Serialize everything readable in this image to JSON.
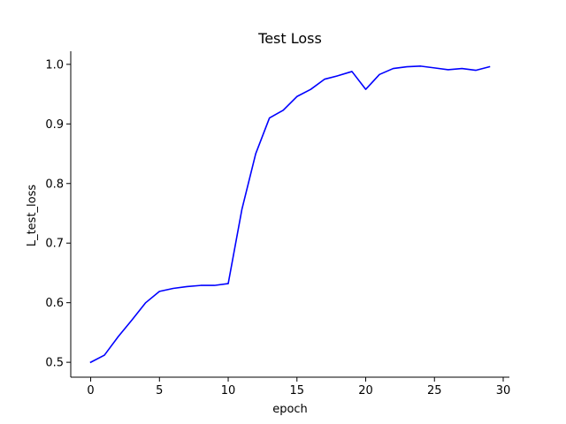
{
  "chart_data": {
    "type": "line",
    "title": "Test Loss",
    "xlabel": "epoch",
    "ylabel": "L_test_loss",
    "xlim": [
      -1.45,
      30.45
    ],
    "ylim": [
      0.475,
      1.022
    ],
    "xticks": [
      0,
      5,
      10,
      15,
      20,
      25,
      30
    ],
    "xtick_labels": [
      "0",
      "5",
      "10",
      "15",
      "20",
      "25",
      "30"
    ],
    "yticks": [
      0.5,
      0.6,
      0.7,
      0.8,
      0.9,
      1.0
    ],
    "ytick_labels": [
      "0.5",
      "0.6",
      "0.7",
      "0.8",
      "0.9",
      "1.0"
    ],
    "grid": false,
    "series": [
      {
        "name": "L_test_loss",
        "color": "#0000ff",
        "x": [
          0,
          1,
          2,
          3,
          4,
          5,
          6,
          7,
          8,
          9,
          10,
          11,
          12,
          13,
          14,
          15,
          16,
          17,
          18,
          19,
          20,
          21,
          22,
          23,
          24,
          25,
          26,
          27,
          28,
          29
        ],
        "y": [
          0.5,
          0.512,
          0.543,
          0.571,
          0.6,
          0.619,
          0.624,
          0.627,
          0.629,
          0.629,
          0.632,
          0.757,
          0.85,
          0.91,
          0.923,
          0.946,
          0.958,
          0.975,
          0.981,
          0.988,
          0.958,
          0.983,
          0.993,
          0.996,
          0.997,
          0.994,
          0.991,
          0.993,
          0.99,
          0.996
        ]
      }
    ]
  }
}
